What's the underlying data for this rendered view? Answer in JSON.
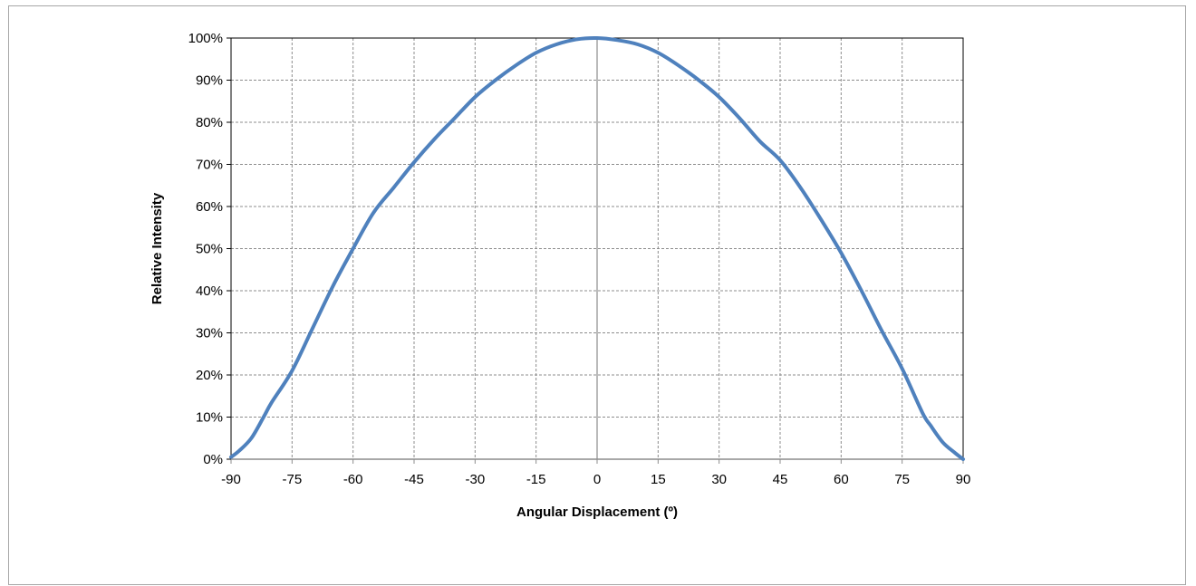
{
  "chart_data": {
    "type": "line",
    "title": "",
    "xlabel": "Angular Displacement (º)",
    "ylabel": "Relative Intensity",
    "xlim": [
      -90,
      90
    ],
    "ylim": [
      0,
      100
    ],
    "x_ticks": [
      -90,
      -75,
      -60,
      -45,
      -30,
      -15,
      0,
      15,
      30,
      45,
      60,
      75,
      90
    ],
    "x_tick_labels": [
      "-90",
      "-75",
      "-60",
      "-45",
      "-30",
      "-15",
      "0",
      "15",
      "30",
      "45",
      "60",
      "75",
      "90"
    ],
    "y_ticks": [
      0,
      10,
      20,
      30,
      40,
      50,
      60,
      70,
      80,
      90,
      100
    ],
    "y_tick_labels": [
      "0%",
      "10%",
      "20%",
      "30%",
      "40%",
      "50%",
      "60%",
      "70%",
      "80%",
      "90%",
      "100%"
    ],
    "grid": true,
    "legend": "none",
    "series": [
      {
        "color": "#4f81bd",
        "x": [
          -90,
          -88,
          -85,
          -82,
          -80,
          -75,
          -70,
          -65,
          -60,
          -55,
          -50,
          -45,
          -40,
          -35,
          -30,
          -25,
          -20,
          -15,
          -10,
          -5,
          0,
          5,
          10,
          15,
          20,
          25,
          30,
          35,
          40,
          45,
          50,
          55,
          60,
          65,
          70,
          75,
          80,
          82,
          85,
          88,
          90
        ],
        "y": [
          0.5,
          2,
          5,
          10,
          13.5,
          21,
          31,
          41,
          50,
          58.5,
          64.5,
          70.5,
          76,
          81,
          86,
          90,
          93.5,
          96.5,
          98.5,
          99.7,
          100,
          99.5,
          98.5,
          96.5,
          93.5,
          90,
          86,
          81,
          75.5,
          71,
          64.5,
          57,
          49,
          40,
          30.5,
          21.5,
          11,
          8,
          4,
          1.5,
          0
        ]
      }
    ]
  }
}
